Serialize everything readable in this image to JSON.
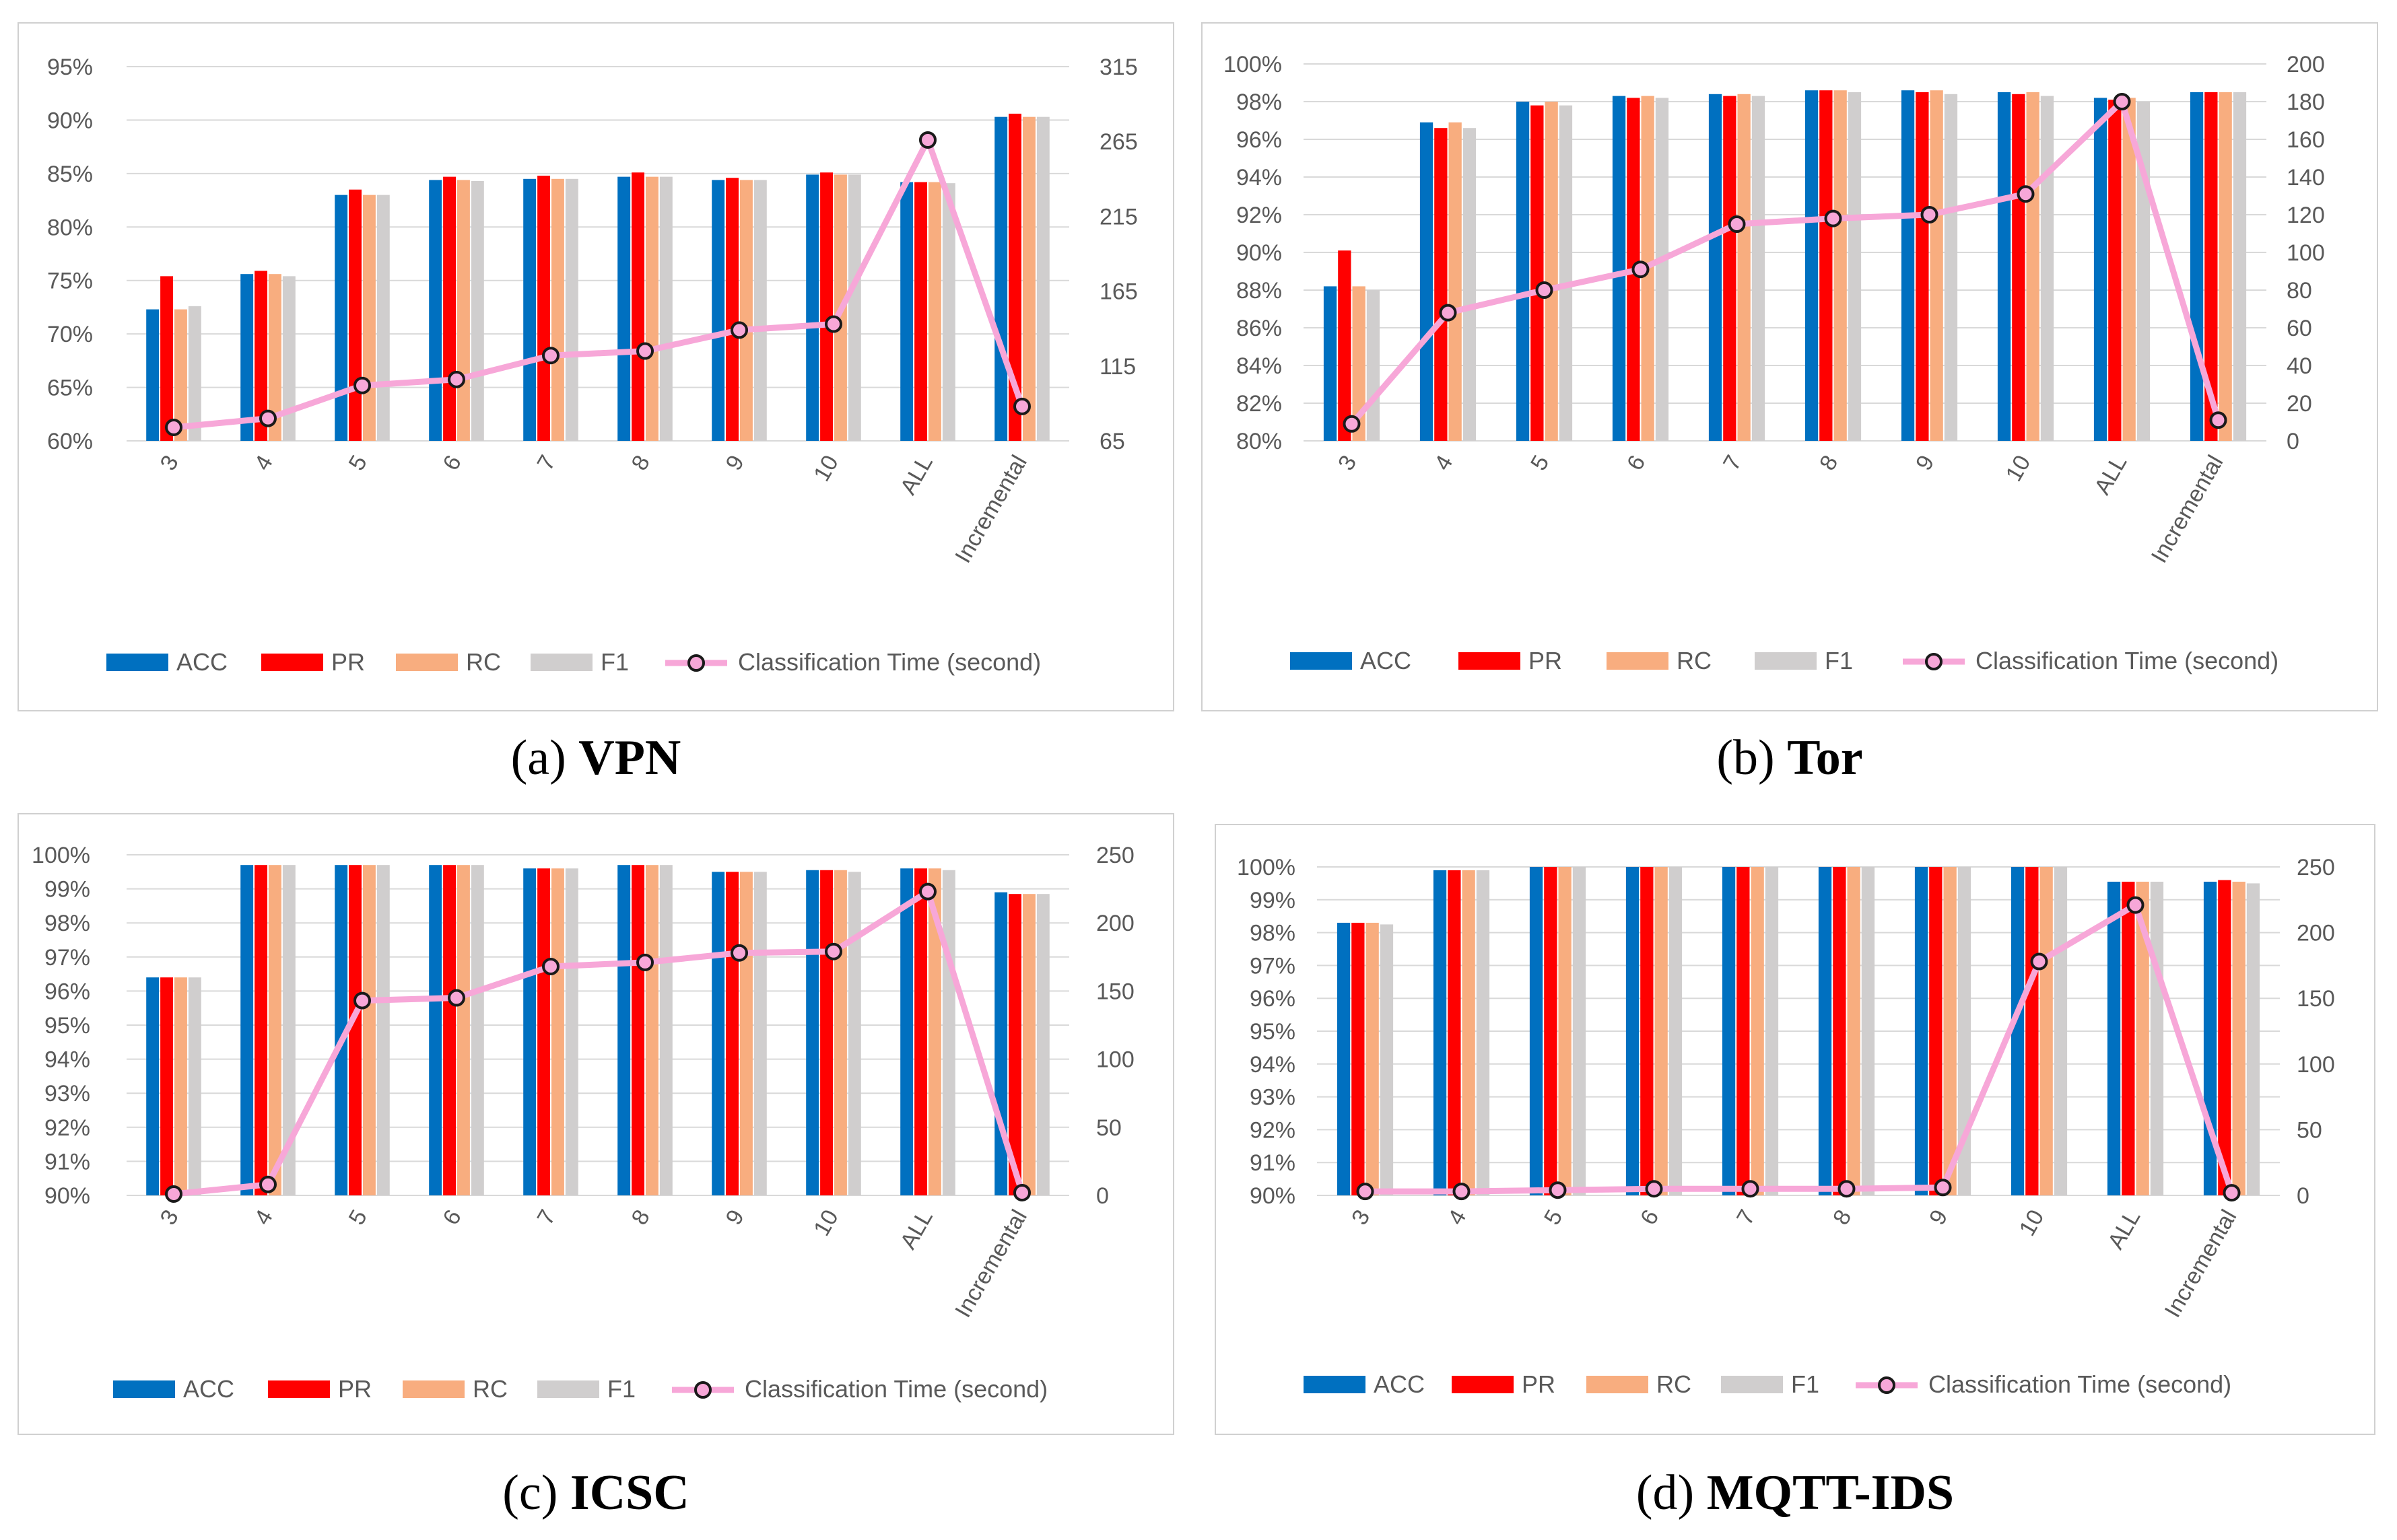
{
  "colors": {
    "ACC": "#0070c0",
    "PR": "#ff0000",
    "RC": "#f8ad7f",
    "F1": "#d0cece",
    "time_line": "#f7a7d8",
    "marker_stroke": "#1a1a1a",
    "grid": "#d9d9d9",
    "axis_text": "#595959"
  },
  "chart_data": [
    {
      "id": "a",
      "type": "bar",
      "caption_letter": "(a)",
      "caption_name": "VPN",
      "categories": [
        "3",
        "4",
        "5",
        "6",
        "7",
        "8",
        "9",
        "10",
        "ALL",
        "Incremental"
      ],
      "series": [
        {
          "name": "ACC",
          "values": [
            72.3,
            75.6,
            83.0,
            84.4,
            84.5,
            84.7,
            84.4,
            84.9,
            84.2,
            90.3
          ]
        },
        {
          "name": "PR",
          "values": [
            75.4,
            75.9,
            83.5,
            84.7,
            84.8,
            85.1,
            84.6,
            85.1,
            84.2,
            90.6
          ]
        },
        {
          "name": "RC",
          "values": [
            72.3,
            75.6,
            83.0,
            84.4,
            84.5,
            84.7,
            84.4,
            84.9,
            84.2,
            90.3
          ]
        },
        {
          "name": "F1",
          "values": [
            72.6,
            75.4,
            83.0,
            84.3,
            84.5,
            84.7,
            84.4,
            84.9,
            84.1,
            90.3
          ]
        }
      ],
      "time_series": {
        "name": "Classification Time (second)",
        "values": [
          74,
          80,
          102,
          106,
          122,
          125,
          139,
          143,
          266,
          88
        ]
      },
      "y_left": {
        "min": 60,
        "max": 95,
        "step": 5,
        "labels": [
          "60%",
          "65%",
          "70%",
          "75%",
          "80%",
          "85%",
          "90%",
          "95%"
        ]
      },
      "y_right": {
        "min": 65,
        "max": 315,
        "labels": [
          "65",
          "115",
          "165",
          "215",
          "265",
          "315"
        ]
      },
      "legend_position": "bottom"
    },
    {
      "id": "b",
      "type": "bar",
      "caption_letter": "(b)",
      "caption_name": "Tor",
      "categories": [
        "3",
        "4",
        "5",
        "6",
        "7",
        "8",
        "9",
        "10",
        "ALL",
        "Incremental"
      ],
      "series": [
        {
          "name": "ACC",
          "values": [
            88.2,
            96.9,
            98.0,
            98.3,
            98.4,
            98.6,
            98.6,
            98.5,
            98.2,
            98.5
          ]
        },
        {
          "name": "PR",
          "values": [
            90.1,
            96.6,
            97.8,
            98.2,
            98.3,
            98.6,
            98.5,
            98.4,
            98.1,
            98.5
          ]
        },
        {
          "name": "RC",
          "values": [
            88.2,
            96.9,
            98.0,
            98.3,
            98.4,
            98.6,
            98.6,
            98.5,
            98.2,
            98.5
          ]
        },
        {
          "name": "F1",
          "values": [
            88.0,
            96.6,
            97.8,
            98.2,
            98.3,
            98.5,
            98.4,
            98.3,
            98.0,
            98.5
          ]
        }
      ],
      "time_series": {
        "name": "Classification Time (second)",
        "values": [
          9,
          68,
          80,
          91,
          115,
          118,
          120,
          131,
          180,
          11
        ]
      },
      "y_left": {
        "min": 80,
        "max": 100,
        "step": 2,
        "labels": [
          "80%",
          "82%",
          "84%",
          "86%",
          "88%",
          "90%",
          "92%",
          "94%",
          "96%",
          "98%",
          "100%"
        ]
      },
      "y_right": {
        "min": 0,
        "max": 200,
        "labels": [
          "0",
          "20",
          "40",
          "60",
          "80",
          "100",
          "120",
          "140",
          "160",
          "180",
          "200"
        ]
      },
      "legend_position": "bottom"
    },
    {
      "id": "c",
      "type": "bar",
      "caption_letter": "(c)",
      "caption_name": "ICSC",
      "categories": [
        "3",
        "4",
        "5",
        "6",
        "7",
        "8",
        "9",
        "10",
        "ALL",
        "Incremental"
      ],
      "series": [
        {
          "name": "ACC",
          "values": [
            96.4,
            99.7,
            99.7,
            99.7,
            99.6,
            99.7,
            99.5,
            99.55,
            99.6,
            98.9
          ]
        },
        {
          "name": "PR",
          "values": [
            96.4,
            99.7,
            99.7,
            99.7,
            99.6,
            99.7,
            99.5,
            99.55,
            99.6,
            98.85
          ]
        },
        {
          "name": "RC",
          "values": [
            96.4,
            99.7,
            99.7,
            99.7,
            99.6,
            99.7,
            99.5,
            99.55,
            99.6,
            98.85
          ]
        },
        {
          "name": "F1",
          "values": [
            96.4,
            99.7,
            99.7,
            99.7,
            99.6,
            99.7,
            99.5,
            99.5,
            99.55,
            98.85
          ]
        }
      ],
      "time_series": {
        "name": "Classification Time (second)",
        "values": [
          1,
          8,
          143,
          145,
          168,
          171,
          178,
          179,
          223,
          2
        ]
      },
      "y_left": {
        "min": 90,
        "max": 100,
        "step": 1,
        "labels": [
          "90%",
          "91%",
          "92%",
          "93%",
          "94%",
          "95%",
          "96%",
          "97%",
          "98%",
          "99%",
          "100%"
        ]
      },
      "y_right": {
        "min": 0,
        "max": 250,
        "labels": [
          "0",
          "50",
          "100",
          "150",
          "200",
          "250"
        ]
      },
      "legend_position": "bottom"
    },
    {
      "id": "d",
      "type": "bar",
      "caption_letter": "(d)",
      "caption_name": "MQTT-IDS",
      "categories": [
        "3",
        "4",
        "5",
        "6",
        "7",
        "8",
        "9",
        "10",
        "ALL",
        "Incremental"
      ],
      "series": [
        {
          "name": "ACC",
          "values": [
            98.3,
            99.9,
            100,
            100,
            100,
            100,
            100,
            100,
            99.55,
            99.55
          ]
        },
        {
          "name": "PR",
          "values": [
            98.3,
            99.9,
            100,
            100,
            100,
            100,
            100,
            100,
            99.55,
            99.6
          ]
        },
        {
          "name": "RC",
          "values": [
            98.3,
            99.9,
            100,
            100,
            100,
            100,
            100,
            100,
            99.55,
            99.55
          ]
        },
        {
          "name": "F1",
          "values": [
            98.25,
            99.9,
            100,
            100,
            100,
            100,
            100,
            100,
            99.55,
            99.5
          ]
        }
      ],
      "time_series": {
        "name": "Classification Time (second)",
        "values": [
          3,
          3,
          4,
          5,
          5,
          5,
          6,
          178,
          221,
          2
        ]
      },
      "y_left": {
        "min": 90,
        "max": 100,
        "step": 1,
        "labels": [
          "90%",
          "91%",
          "92%",
          "93%",
          "94%",
          "95%",
          "96%",
          "97%",
          "98%",
          "99%",
          "100%"
        ]
      },
      "y_right": {
        "min": 0,
        "max": 250,
        "labels": [
          "0",
          "50",
          "100",
          "150",
          "200",
          "250"
        ]
      },
      "legend_position": "bottom"
    }
  ]
}
